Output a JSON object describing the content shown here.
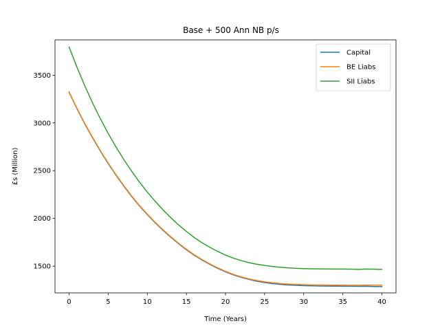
{
  "chart_data": {
    "type": "line",
    "title": "Base + 500 Ann NB p/s",
    "xlabel": "Time (Years)",
    "ylabel": "£s (Million)",
    "xlim": [
      -1.8,
      41.8
    ],
    "ylim": [
      1220,
      3870
    ],
    "xticks": [
      0,
      5,
      10,
      15,
      20,
      25,
      30,
      35,
      40
    ],
    "yticks": [
      1500,
      2000,
      2500,
      3000,
      3500
    ],
    "grid": false,
    "legend_position": "top-right",
    "x": [
      0,
      1,
      2,
      3,
      4,
      5,
      6,
      7,
      8,
      9,
      10,
      11,
      12,
      13,
      14,
      15,
      16,
      17,
      18,
      19,
      20,
      21,
      22,
      23,
      24,
      25,
      26,
      27,
      28,
      29,
      30,
      31,
      32,
      33,
      34,
      35,
      36,
      37,
      38,
      39,
      40
    ],
    "series": [
      {
        "name": "Capital",
        "color": "#1f77b4",
        "values": [
          3320,
          3150,
          2990,
          2845,
          2705,
          2575,
          2452,
          2338,
          2230,
          2130,
          2040,
          1955,
          1876,
          1803,
          1735,
          1672,
          1614,
          1564,
          1518,
          1477,
          1440,
          1409,
          1383,
          1361,
          1342,
          1328,
          1317,
          1309,
          1303,
          1299,
          1296,
          1294,
          1292,
          1291,
          1290,
          1289,
          1289,
          1288,
          1289,
          1287,
          1286
        ]
      },
      {
        "name": "BE Liabs",
        "color": "#ff7f0e",
        "values": [
          3325,
          3155,
          2995,
          2850,
          2710,
          2580,
          2457,
          2343,
          2235,
          2135,
          2045,
          1960,
          1881,
          1808,
          1740,
          1677,
          1619,
          1569,
          1523,
          1482,
          1445,
          1414,
          1388,
          1367,
          1350,
          1336,
          1326,
          1318,
          1313,
          1309,
          1306,
          1304,
          1303,
          1302,
          1301,
          1301,
          1300,
          1300,
          1302,
          1301,
          1300
        ]
      },
      {
        "name": "SII Liabs",
        "color": "#2ca02c",
        "values": [
          3795,
          3585,
          3390,
          3210,
          3045,
          2890,
          2748,
          2616,
          2494,
          2380,
          2276,
          2180,
          2090,
          2008,
          1932,
          1863,
          1800,
          1745,
          1697,
          1654,
          1616,
          1584,
          1558,
          1537,
          1520,
          1507,
          1496,
          1488,
          1482,
          1477,
          1474,
          1472,
          1471,
          1470,
          1469,
          1469,
          1468,
          1467,
          1469,
          1468,
          1466
        ]
      }
    ]
  }
}
